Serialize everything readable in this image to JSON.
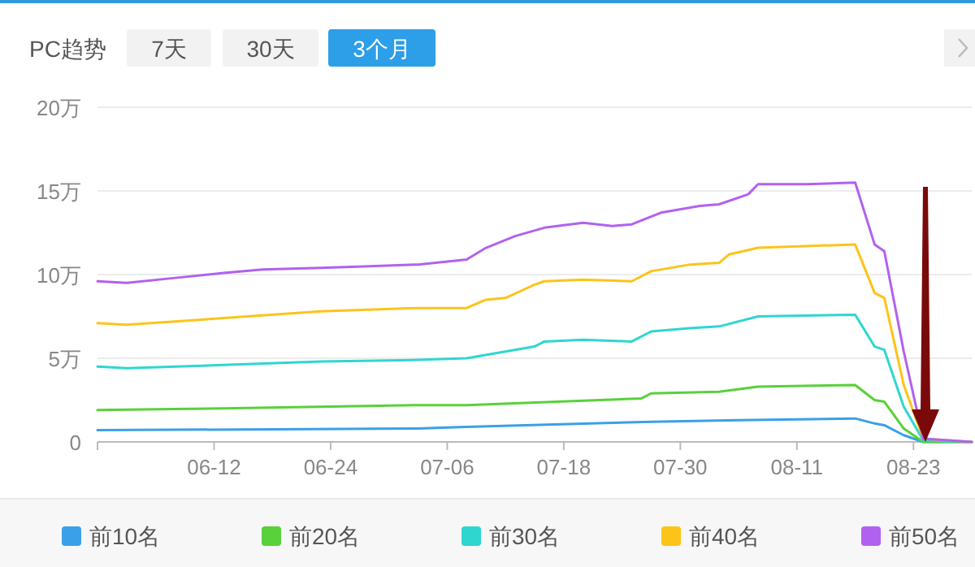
{
  "chart_data": {
    "type": "line",
    "title": "PC趋势",
    "annotations": [
      "7天",
      "30天",
      "3个月"
    ],
    "xlim": [
      "--05-31",
      "--08-29"
    ],
    "xticks": [
      {
        "value": "--06-12",
        "label": "06-12"
      },
      {
        "value": "--06-24",
        "label": "06-24"
      },
      {
        "value": "--07-06",
        "label": "07-06"
      },
      {
        "value": "--07-18",
        "label": "07-18"
      },
      {
        "value": "--07-30",
        "label": "07-30"
      },
      {
        "value": "--08-11",
        "label": "08-11"
      },
      {
        "value": "--08-23",
        "label": "08-23"
      }
    ],
    "ylim": [
      0,
      20
    ],
    "yticks": [
      0,
      {
        "value": 5,
        "label": "5万"
      },
      {
        "value": 10,
        "label": "10万"
      },
      {
        "value": 15,
        "label": "15万"
      },
      {
        "value": 20,
        "label": "20万"
      }
    ],
    "grid": "y",
    "legend": "bottom",
    "series": [
      {
        "name": "前10名",
        "color": "#3aa0e8",
        "x": [
          "--05-31",
          "--07-03",
          "--07-08",
          "--07-27",
          "--08-05",
          "--08-17",
          "--08-19",
          "--08-20",
          "--08-22",
          "--08-24",
          "--08-29"
        ],
        "values": [
          0.7,
          0.8,
          0.9,
          1.2,
          1.3,
          1.4,
          1.1,
          1.0,
          0.4,
          0,
          0
        ]
      },
      {
        "name": "前20名",
        "color": "#58d13a",
        "x": [
          "--05-31",
          "--06-13",
          "--07-03",
          "--07-08",
          "--07-26",
          "--07-27",
          "--08-03",
          "--08-07",
          "--08-17",
          "--08-19",
          "--08-20",
          "--08-22",
          "--08-24",
          "--08-29"
        ],
        "values": [
          1.9,
          2.0,
          2.2,
          2.2,
          2.6,
          2.9,
          3.0,
          3.3,
          3.4,
          2.5,
          2.4,
          0.8,
          0,
          0
        ]
      },
      {
        "name": "前30名",
        "color": "#2fd6d0",
        "x": [
          "--05-31",
          "--06-03",
          "--06-13",
          "--06-23",
          "--07-03",
          "--07-08",
          "--07-12",
          "--07-15",
          "--07-16",
          "--07-20",
          "--07-25",
          "--07-27",
          "--07-31",
          "--08-03",
          "--08-07",
          "--08-17",
          "--08-19",
          "--08-20",
          "--08-22",
          "--08-24",
          "--08-29"
        ],
        "values": [
          4.5,
          4.4,
          4.6,
          4.8,
          4.9,
          5.0,
          5.4,
          5.7,
          6.0,
          6.1,
          6.0,
          6.6,
          6.8,
          6.9,
          7.5,
          7.6,
          5.7,
          5.5,
          2.1,
          0.1,
          0
        ]
      },
      {
        "name": "前40名",
        "color": "#fcc419",
        "x": [
          "--05-31",
          "--06-03",
          "--06-13",
          "--06-23",
          "--07-03",
          "--07-08",
          "--07-10",
          "--07-12",
          "--07-15",
          "--07-16",
          "--07-20",
          "--07-25",
          "--07-27",
          "--07-31",
          "--08-03",
          "--08-04",
          "--08-07",
          "--08-17",
          "--08-19",
          "--08-20",
          "--08-22",
          "--08-24",
          "--08-29"
        ],
        "values": [
          7.1,
          7.0,
          7.4,
          7.8,
          8.0,
          8.0,
          8.5,
          8.6,
          9.4,
          9.6,
          9.7,
          9.6,
          10.2,
          10.6,
          10.7,
          11.2,
          11.6,
          11.8,
          8.9,
          8.6,
          3.4,
          0.2,
          0
        ]
      },
      {
        "name": "前50名",
        "color": "#b161f0",
        "x": [
          "--05-31",
          "--06-03",
          "--06-08",
          "--06-13",
          "--06-17",
          "--06-23",
          "--06-28",
          "--07-03",
          "--07-08",
          "--07-10",
          "--07-13",
          "--07-16",
          "--07-20",
          "--07-23",
          "--07-25",
          "--07-28",
          "--08-01",
          "--08-03",
          "--08-06",
          "--08-07",
          "--08-12",
          "--08-17",
          "--08-19",
          "--08-20",
          "--08-22",
          "--08-24",
          "--08-29"
        ],
        "values": [
          9.6,
          9.5,
          9.8,
          10.1,
          10.3,
          10.4,
          10.5,
          10.6,
          10.9,
          11.6,
          12.3,
          12.8,
          13.1,
          12.9,
          13.0,
          13.7,
          14.1,
          14.2,
          14.8,
          15.4,
          15.4,
          15.5,
          11.8,
          11.4,
          5.4,
          0.2,
          0
        ]
      }
    ]
  }
}
